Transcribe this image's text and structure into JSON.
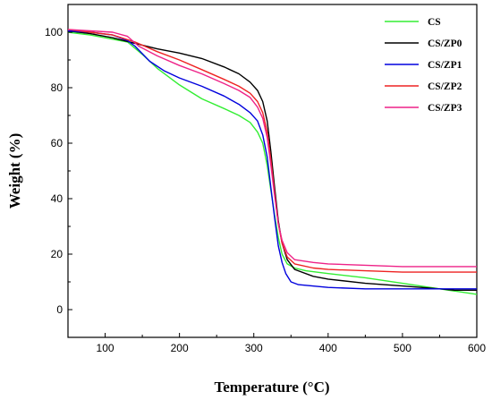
{
  "chart_data": {
    "type": "line",
    "xlabel": "Temperature (°C)",
    "ylabel": "Weight (%)",
    "xlim": [
      50,
      600
    ],
    "ylim": [
      -10,
      110
    ],
    "x_ticks": [
      100,
      200,
      300,
      400,
      500,
      600
    ],
    "y_ticks": [
      0,
      20,
      40,
      60,
      80,
      100
    ],
    "grid": false,
    "legend_position": "top-right",
    "series": [
      {
        "name": "CS",
        "color": "#33ee33",
        "points": [
          [
            50,
            100
          ],
          [
            80,
            99
          ],
          [
            110,
            97.5
          ],
          [
            130,
            96.5
          ],
          [
            150,
            92
          ],
          [
            170,
            87
          ],
          [
            200,
            81
          ],
          [
            230,
            76
          ],
          [
            260,
            72.5
          ],
          [
            280,
            70
          ],
          [
            295,
            67.5
          ],
          [
            305,
            64
          ],
          [
            312,
            60
          ],
          [
            318,
            52
          ],
          [
            323,
            43
          ],
          [
            328,
            34
          ],
          [
            333,
            26
          ],
          [
            338,
            20
          ],
          [
            345,
            16.5
          ],
          [
            355,
            15
          ],
          [
            370,
            14
          ],
          [
            400,
            13
          ],
          [
            450,
            11.5
          ],
          [
            500,
            9.5
          ],
          [
            550,
            7.5
          ],
          [
            600,
            5.5
          ]
        ]
      },
      {
        "name": "CS/ZP0",
        "color": "#000000",
        "points": [
          [
            50,
            100.5
          ],
          [
            80,
            99.5
          ],
          [
            110,
            98
          ],
          [
            140,
            96
          ],
          [
            170,
            94
          ],
          [
            200,
            92.5
          ],
          [
            230,
            90.5
          ],
          [
            260,
            87.5
          ],
          [
            280,
            85
          ],
          [
            295,
            82
          ],
          [
            305,
            79
          ],
          [
            312,
            75
          ],
          [
            318,
            68
          ],
          [
            323,
            57
          ],
          [
            328,
            44
          ],
          [
            333,
            32
          ],
          [
            338,
            24
          ],
          [
            345,
            18
          ],
          [
            355,
            14.5
          ],
          [
            380,
            12
          ],
          [
            400,
            11
          ],
          [
            450,
            9.5
          ],
          [
            500,
            8.5
          ],
          [
            550,
            7.5
          ],
          [
            570,
            7
          ],
          [
            600,
            7
          ]
        ]
      },
      {
        "name": "CS/ZP1",
        "color": "#0000dd",
        "points": [
          [
            50,
            100.5
          ],
          [
            80,
            100
          ],
          [
            110,
            99
          ],
          [
            130,
            97
          ],
          [
            140,
            95
          ],
          [
            160,
            89.5
          ],
          [
            180,
            86
          ],
          [
            200,
            83.5
          ],
          [
            230,
            80.5
          ],
          [
            260,
            77
          ],
          [
            280,
            74
          ],
          [
            295,
            71
          ],
          [
            305,
            68
          ],
          [
            312,
            63
          ],
          [
            318,
            55
          ],
          [
            323,
            44
          ],
          [
            328,
            33
          ],
          [
            333,
            23
          ],
          [
            338,
            17
          ],
          [
            343,
            13
          ],
          [
            350,
            10
          ],
          [
            360,
            9
          ],
          [
            400,
            8
          ],
          [
            450,
            7.5
          ],
          [
            500,
            7.5
          ],
          [
            550,
            7.5
          ],
          [
            600,
            7.5
          ]
        ]
      },
      {
        "name": "CS/ZP2",
        "color": "#ee2222",
        "points": [
          [
            50,
            101
          ],
          [
            80,
            100
          ],
          [
            110,
            99
          ],
          [
            140,
            96.5
          ],
          [
            170,
            93
          ],
          [
            200,
            90
          ],
          [
            230,
            86.5
          ],
          [
            260,
            83
          ],
          [
            280,
            80.5
          ],
          [
            295,
            78
          ],
          [
            305,
            75
          ],
          [
            312,
            71
          ],
          [
            318,
            64
          ],
          [
            323,
            54
          ],
          [
            328,
            42
          ],
          [
            333,
            31
          ],
          [
            338,
            24
          ],
          [
            345,
            19
          ],
          [
            355,
            16.5
          ],
          [
            380,
            15
          ],
          [
            400,
            14.5
          ],
          [
            450,
            14
          ],
          [
            500,
            13.5
          ],
          [
            550,
            13.5
          ],
          [
            600,
            13.5
          ]
        ]
      },
      {
        "name": "CS/ZP3",
        "color": "#ee2288",
        "points": [
          [
            50,
            101
          ],
          [
            80,
            100.5
          ],
          [
            110,
            100
          ],
          [
            130,
            98.5
          ],
          [
            145,
            95
          ],
          [
            170,
            91.5
          ],
          [
            200,
            88
          ],
          [
            230,
            85
          ],
          [
            260,
            81.5
          ],
          [
            280,
            79
          ],
          [
            295,
            76.5
          ],
          [
            305,
            73
          ],
          [
            312,
            69
          ],
          [
            318,
            62
          ],
          [
            323,
            52
          ],
          [
            328,
            41
          ],
          [
            333,
            31
          ],
          [
            338,
            25
          ],
          [
            345,
            20.5
          ],
          [
            355,
            18
          ],
          [
            380,
            17
          ],
          [
            400,
            16.5
          ],
          [
            450,
            16
          ],
          [
            500,
            15.5
          ],
          [
            550,
            15.5
          ],
          [
            600,
            15.5
          ]
        ]
      }
    ]
  }
}
